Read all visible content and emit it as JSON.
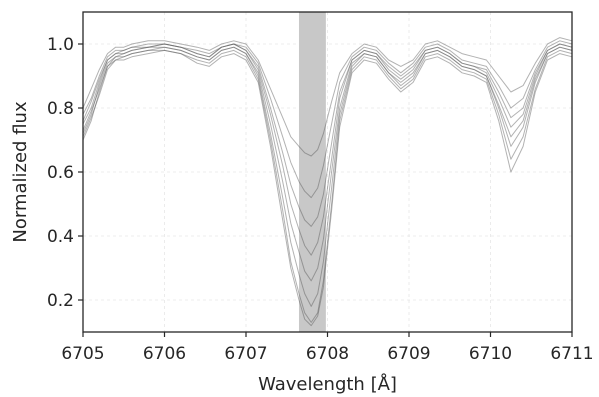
{
  "chart_data": {
    "type": "line",
    "title": "",
    "xlabel": "Wavelength [Å]",
    "ylabel": "Normalized flux",
    "xlim": [
      6705.0,
      6711.0
    ],
    "ylim": [
      0.1,
      1.1
    ],
    "xticks": [
      6705,
      6706,
      6707,
      6708,
      6709,
      6710,
      6711
    ],
    "xtick_labels": [
      "6705",
      "6706",
      "6707",
      "6708",
      "6709",
      "6710",
      "6711"
    ],
    "yticks": [
      0.2,
      0.4,
      0.6,
      0.8,
      1.0
    ],
    "ytick_labels": [
      "0.2",
      "0.4",
      "0.6",
      "0.8",
      "1.0"
    ],
    "grid": true,
    "shaded_band": {
      "x_from": 6707.65,
      "x_to": 6707.98,
      "color": "#c8c8c8"
    },
    "line_color": "#555555",
    "x": [
      6705.0,
      6705.1,
      6705.2,
      6705.3,
      6705.4,
      6705.5,
      6705.6,
      6705.8,
      6706.0,
      6706.2,
      6706.4,
      6706.55,
      6706.7,
      6706.85,
      6707.0,
      6707.15,
      6707.3,
      6707.45,
      6707.55,
      6707.65,
      6707.72,
      6707.8,
      6707.88,
      6707.95,
      6708.05,
      6708.15,
      6708.3,
      6708.45,
      6708.6,
      6708.75,
      6708.9,
      6709.05,
      6709.2,
      6709.35,
      6709.5,
      6709.65,
      6709.8,
      6709.95,
      6710.1,
      6710.25,
      6710.4,
      6710.55,
      6710.7,
      6710.85,
      6711.0
    ],
    "series": [
      {
        "values": [
          0.72,
          0.78,
          0.87,
          0.94,
          0.96,
          0.97,
          0.98,
          0.99,
          0.99,
          0.98,
          0.96,
          0.95,
          0.98,
          0.99,
          0.97,
          0.9,
          0.72,
          0.52,
          0.38,
          0.28,
          0.22,
          0.18,
          0.22,
          0.32,
          0.55,
          0.78,
          0.93,
          0.97,
          0.96,
          0.91,
          0.87,
          0.9,
          0.97,
          0.98,
          0.96,
          0.93,
          0.92,
          0.9,
          0.8,
          0.68,
          0.74,
          0.88,
          0.97,
          0.99,
          0.98
        ]
      },
      {
        "values": [
          0.75,
          0.8,
          0.88,
          0.95,
          0.97,
          0.97,
          0.98,
          0.99,
          1.0,
          0.99,
          0.97,
          0.96,
          0.99,
          1.0,
          0.98,
          0.92,
          0.78,
          0.62,
          0.5,
          0.42,
          0.37,
          0.34,
          0.38,
          0.46,
          0.64,
          0.83,
          0.95,
          0.98,
          0.97,
          0.92,
          0.89,
          0.92,
          0.98,
          0.99,
          0.97,
          0.94,
          0.93,
          0.91,
          0.83,
          0.74,
          0.78,
          0.9,
          0.98,
          1.0,
          0.99
        ]
      },
      {
        "values": [
          0.7,
          0.76,
          0.85,
          0.93,
          0.95,
          0.96,
          0.97,
          0.98,
          0.98,
          0.97,
          0.95,
          0.94,
          0.97,
          0.98,
          0.96,
          0.89,
          0.7,
          0.48,
          0.32,
          0.22,
          0.16,
          0.13,
          0.16,
          0.26,
          0.5,
          0.76,
          0.92,
          0.96,
          0.95,
          0.9,
          0.86,
          0.89,
          0.96,
          0.97,
          0.95,
          0.92,
          0.91,
          0.89,
          0.78,
          0.64,
          0.71,
          0.86,
          0.96,
          0.98,
          0.97
        ]
      },
      {
        "values": [
          0.78,
          0.83,
          0.9,
          0.96,
          0.98,
          0.98,
          0.99,
          1.0,
          1.0,
          0.99,
          0.98,
          0.97,
          0.99,
          1.0,
          0.99,
          0.94,
          0.83,
          0.71,
          0.63,
          0.57,
          0.54,
          0.52,
          0.55,
          0.62,
          0.75,
          0.88,
          0.96,
          0.99,
          0.98,
          0.94,
          0.91,
          0.94,
          0.99,
          1.0,
          0.98,
          0.95,
          0.94,
          0.93,
          0.87,
          0.8,
          0.83,
          0.92,
          0.99,
          1.01,
          1.0
        ]
      },
      {
        "values": [
          0.73,
          0.79,
          0.86,
          0.93,
          0.96,
          0.96,
          0.97,
          0.98,
          0.99,
          0.98,
          0.96,
          0.95,
          0.98,
          0.99,
          0.97,
          0.91,
          0.75,
          0.57,
          0.44,
          0.35,
          0.29,
          0.26,
          0.3,
          0.39,
          0.6,
          0.8,
          0.94,
          0.97,
          0.96,
          0.91,
          0.88,
          0.91,
          0.97,
          0.98,
          0.96,
          0.93,
          0.92,
          0.9,
          0.81,
          0.71,
          0.76,
          0.89,
          0.97,
          0.99,
          0.98
        ]
      },
      {
        "values": [
          0.8,
          0.86,
          0.92,
          0.97,
          0.99,
          0.99,
          1.0,
          1.01,
          1.01,
          1.0,
          0.99,
          0.98,
          1.0,
          1.01,
          1.0,
          0.95,
          0.86,
          0.77,
          0.71,
          0.68,
          0.66,
          0.65,
          0.67,
          0.72,
          0.82,
          0.91,
          0.97,
          1.0,
          0.99,
          0.95,
          0.93,
          0.95,
          1.0,
          1.01,
          0.99,
          0.97,
          0.96,
          0.95,
          0.9,
          0.85,
          0.87,
          0.94,
          1.0,
          1.02,
          1.01
        ]
      },
      {
        "values": [
          0.71,
          0.77,
          0.84,
          0.92,
          0.95,
          0.95,
          0.96,
          0.97,
          0.98,
          0.97,
          0.94,
          0.93,
          0.96,
          0.97,
          0.95,
          0.88,
          0.68,
          0.45,
          0.3,
          0.2,
          0.14,
          0.12,
          0.15,
          0.24,
          0.48,
          0.74,
          0.91,
          0.95,
          0.94,
          0.89,
          0.85,
          0.88,
          0.95,
          0.96,
          0.94,
          0.91,
          0.9,
          0.88,
          0.76,
          0.6,
          0.68,
          0.85,
          0.95,
          0.97,
          0.96
        ]
      },
      {
        "values": [
          0.76,
          0.82,
          0.89,
          0.95,
          0.97,
          0.98,
          0.99,
          0.99,
          1.0,
          0.99,
          0.97,
          0.96,
          0.99,
          1.0,
          0.98,
          0.93,
          0.8,
          0.66,
          0.56,
          0.49,
          0.45,
          0.43,
          0.46,
          0.53,
          0.69,
          0.85,
          0.95,
          0.98,
          0.97,
          0.93,
          0.9,
          0.93,
          0.98,
          0.99,
          0.97,
          0.94,
          0.93,
          0.92,
          0.85,
          0.77,
          0.8,
          0.91,
          0.98,
          1.0,
          0.99
        ]
      }
    ]
  }
}
